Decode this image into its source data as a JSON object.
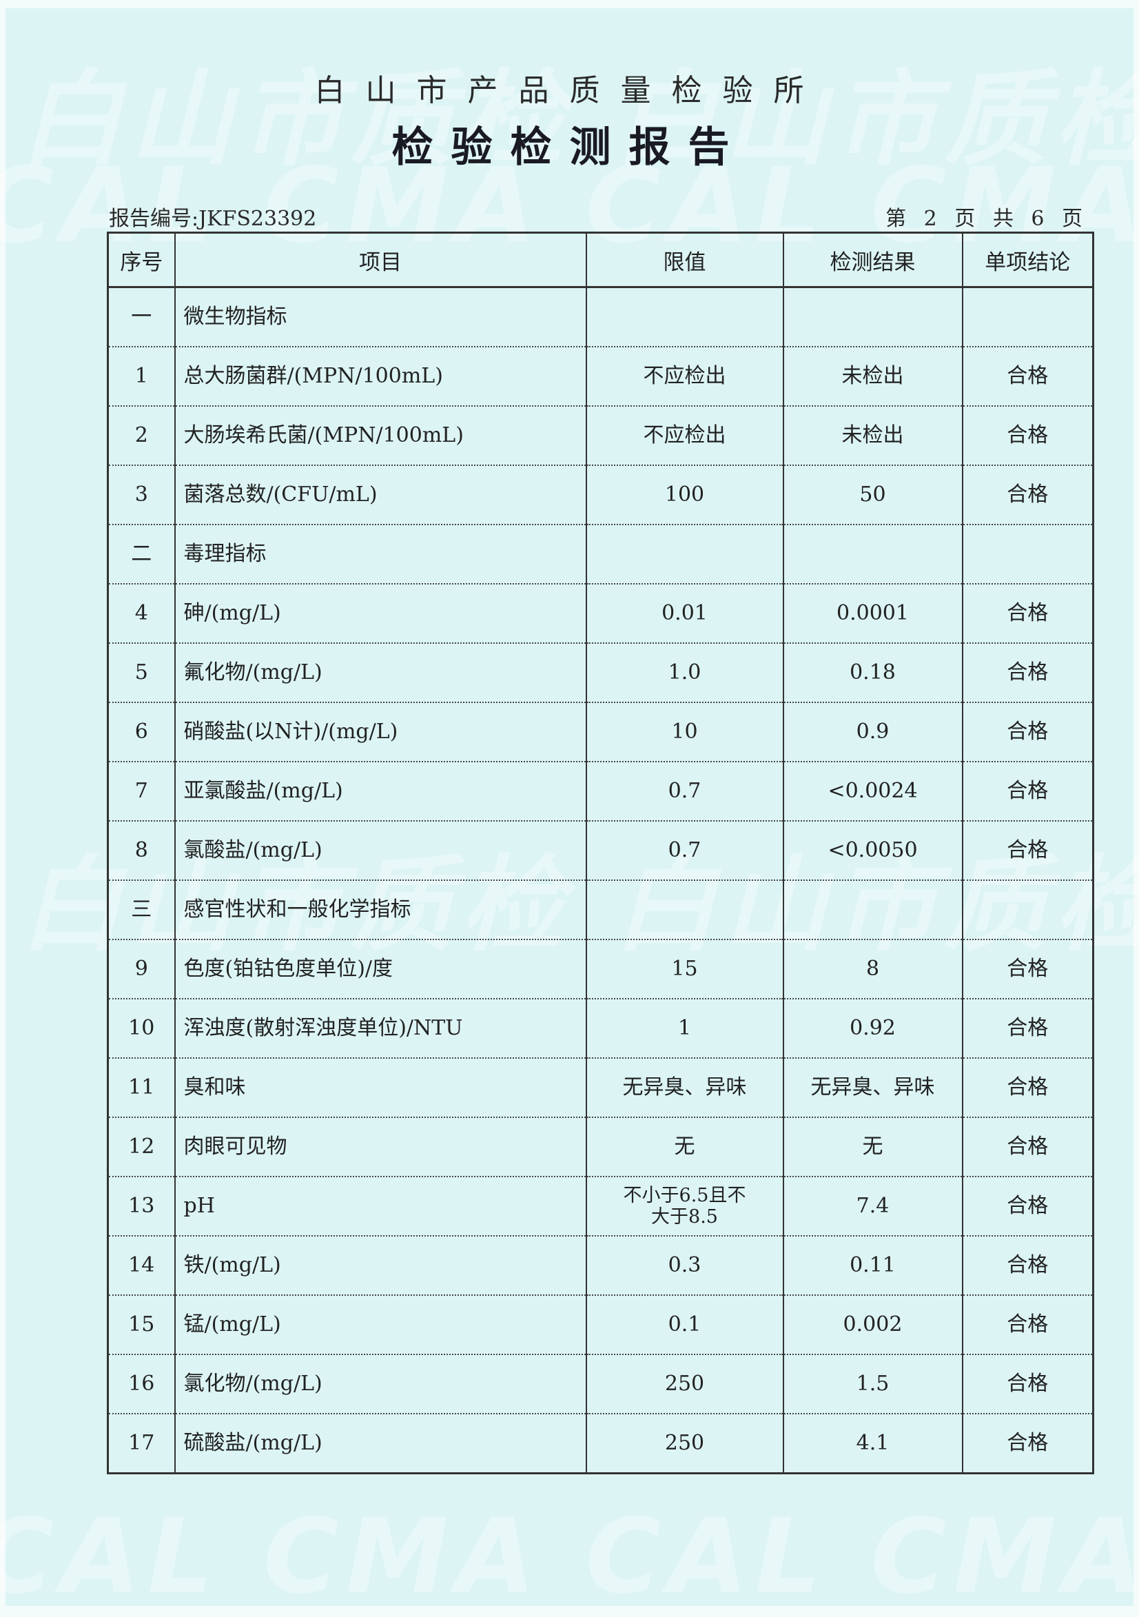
{
  "header": {
    "institute": "白山市产品质量检验所",
    "title": "检验检测报告",
    "report_number": "报告编号:JKFS23392",
    "page_info": "第 2 页 共 6 页"
  },
  "watermark": "白山市质检 CMA CAL",
  "table": {
    "columns": [
      "序号",
      "项目",
      "限值",
      "检测结果",
      "单项结论"
    ],
    "rows": [
      {
        "no": "一",
        "item": "微生物指标",
        "limit": "",
        "result": "",
        "conclusion": ""
      },
      {
        "no": "1",
        "item": "总大肠菌群/(MPN/100mL)",
        "limit": "不应检出",
        "result": "未检出",
        "conclusion": "合格"
      },
      {
        "no": "2",
        "item": "大肠埃希氏菌/(MPN/100mL)",
        "limit": "不应检出",
        "result": "未检出",
        "conclusion": "合格"
      },
      {
        "no": "3",
        "item": "菌落总数/(CFU/mL)",
        "limit": "100",
        "result": "50",
        "conclusion": "合格"
      },
      {
        "no": "二",
        "item": "毒理指标",
        "limit": "",
        "result": "",
        "conclusion": ""
      },
      {
        "no": "4",
        "item": "砷/(mg/L)",
        "limit": "0.01",
        "result": "0.0001",
        "conclusion": "合格"
      },
      {
        "no": "5",
        "item": "氟化物/(mg/L)",
        "limit": "1.0",
        "result": "0.18",
        "conclusion": "合格"
      },
      {
        "no": "6",
        "item": "硝酸盐(以N计)/(mg/L)",
        "limit": "10",
        "result": "0.9",
        "conclusion": "合格"
      },
      {
        "no": "7",
        "item": "亚氯酸盐/(mg/L)",
        "limit": "0.7",
        "result": "<0.0024",
        "conclusion": "合格"
      },
      {
        "no": "8",
        "item": "氯酸盐/(mg/L)",
        "limit": "0.7",
        "result": "<0.0050",
        "conclusion": "合格"
      },
      {
        "no": "三",
        "item": "感官性状和一般化学指标",
        "limit": "",
        "result": "",
        "conclusion": ""
      },
      {
        "no": "9",
        "item": "色度(铂钴色度单位)/度",
        "limit": "15",
        "result": "8",
        "conclusion": "合格"
      },
      {
        "no": "10",
        "item": "浑浊度(散射浑浊度单位)/NTU",
        "limit": "1",
        "result": "0.92",
        "conclusion": "合格"
      },
      {
        "no": "11",
        "item": "臭和味",
        "limit": "无异臭、异味",
        "result": "无异臭、异味",
        "conclusion": "合格"
      },
      {
        "no": "12",
        "item": "肉眼可见物",
        "limit": "无",
        "result": "无",
        "conclusion": "合格"
      },
      {
        "no": "13",
        "item": "pH",
        "limit": "不小于6.5且不大于8.5",
        "result": "7.4",
        "conclusion": "合格"
      },
      {
        "no": "14",
        "item": "铁/(mg/L)",
        "limit": "0.3",
        "result": "0.11",
        "conclusion": "合格"
      },
      {
        "no": "15",
        "item": "锰/(mg/L)",
        "limit": "0.1",
        "result": "0.002",
        "conclusion": "合格"
      },
      {
        "no": "16",
        "item": "氯化物/(mg/L)",
        "limit": "250",
        "result": "1.5",
        "conclusion": "合格"
      },
      {
        "no": "17",
        "item": "硫酸盐/(mg/L)",
        "limit": "250",
        "result": "4.1",
        "conclusion": "合格"
      }
    ]
  }
}
